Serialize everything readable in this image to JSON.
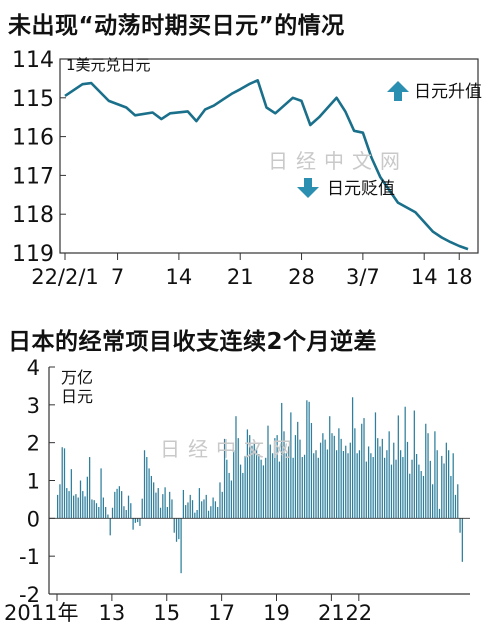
{
  "colors": {
    "line": "#1a6f8a",
    "bar": "#2f7f9c",
    "axis": "#333333",
    "arrow": "#2a8fb0",
    "bg": "#ffffff"
  },
  "titles": {
    "chart1": "未出现“动荡时期买日元”的情况",
    "chart2": "日本的经常项目收支连续2个月逆差"
  },
  "watermark": "日经中文网",
  "chart_data": [
    {
      "type": "line",
      "title": "未出现“动荡时期买日元”的情况",
      "unit": "1美元兑日元",
      "y_inverted": true,
      "ylim": [
        114,
        119
      ],
      "y_ticks": [
        114,
        115,
        116,
        117,
        118,
        119
      ],
      "x_tick_labels": [
        "22/2/1",
        "7",
        "14",
        "21",
        "28",
        "3/7",
        "14",
        "18"
      ],
      "x_tick_days": [
        0,
        6,
        13,
        20,
        27,
        34,
        41,
        45
      ],
      "annotations": {
        "up": "日元升值",
        "down": "日元贬值"
      },
      "series": [
        {
          "x_days": [
            0,
            2,
            3,
            5,
            7,
            8,
            10,
            11,
            12,
            14,
            15,
            16,
            17,
            18,
            19,
            20,
            21,
            22,
            23,
            24,
            26,
            27,
            28,
            29,
            31,
            32,
            33,
            34,
            35,
            36,
            38,
            40,
            41,
            42,
            43,
            44,
            45,
            46
          ],
          "values": [
            114.95,
            114.65,
            114.62,
            115.08,
            115.25,
            115.45,
            115.38,
            115.55,
            115.4,
            115.35,
            115.6,
            115.3,
            115.2,
            115.05,
            114.9,
            114.78,
            114.65,
            114.55,
            115.25,
            115.4,
            115.0,
            115.08,
            115.7,
            115.5,
            115.0,
            115.35,
            115.85,
            115.9,
            116.55,
            117.05,
            117.7,
            117.95,
            118.2,
            118.45,
            118.6,
            118.72,
            118.82,
            118.9
          ]
        }
      ]
    },
    {
      "type": "bar",
      "title": "日本的经常项目收支连续2个月逆差",
      "unit": [
        "万亿",
        "日元"
      ],
      "ylim": [
        -2,
        4
      ],
      "y_ticks": [
        4,
        3,
        2,
        1,
        0,
        -1,
        -2
      ],
      "x_tick_labels": [
        "2011年",
        "13",
        "15",
        "17",
        "19",
        "21",
        "22"
      ],
      "x_tick_index": [
        0,
        24,
        48,
        72,
        96,
        120,
        132
      ],
      "series": [
        {
          "values": [
            0.62,
            0.9,
            1.88,
            1.85,
            0.8,
            0.72,
            1.3,
            0.6,
            0.64,
            0.55,
            1.0,
            0.72,
            0.58,
            1.1,
            1.62,
            0.5,
            0.48,
            0.4,
            0.3,
            1.32,
            0.55,
            0.3,
            0.1,
            -0.45,
            0.28,
            0.7,
            0.78,
            0.85,
            0.72,
            0.32,
            0.22,
            0.6,
            0.4,
            -0.3,
            -0.12,
            -0.1,
            -0.2,
            0.52,
            1.8,
            1.62,
            1.32,
            1.12,
            0.95,
            0.68,
            0.8,
            0.28,
            0.64,
            0.82,
            0.3,
            0.7,
            0.5,
            -0.38,
            -0.62,
            -0.55,
            -1.45,
            0.75,
            0.35,
            0.42,
            0.62,
            0.48,
            0.15,
            0.22,
            0.8,
            0.45,
            0.5,
            0.62,
            0.2,
            0.32,
            0.55,
            0.45,
            0.3,
            0.95,
            0.7,
            2.1,
            1.55,
            1.2,
            1.0,
            1.8,
            2.7,
            2.12,
            1.42,
            1.2,
            1.65,
            2.35,
            2.2,
            1.92,
            2.0,
            1.82,
            1.7,
            1.55,
            1.4,
            1.6,
            2.45,
            1.95,
            1.72,
            2.12,
            2.2,
            1.5,
            3.05,
            2.3,
            1.72,
            1.9,
            2.8,
            1.6,
            2.2,
            2.55,
            2.08,
            1.62,
            1.68,
            3.12,
            3.08,
            2.52,
            1.72,
            1.8,
            1.6,
            2.0,
            2.25,
            2.08,
            1.82,
            2.7,
            2.25,
            2.18,
            1.8,
            2.38,
            2.1,
            1.78,
            1.92,
            1.72,
            2.0,
            3.2,
            2.38,
            1.72,
            1.8,
            2.5,
            2.65,
            1.5,
            1.9,
            1.72,
            1.62,
            2.8,
            2.12,
            1.9,
            2.1,
            1.6,
            1.8,
            2.3,
            1.42,
            2.0,
            1.55,
            2.72,
            1.8,
            1.62,
            2.95,
            2.02,
            1.18,
            1.55,
            2.85,
            1.7,
            1.42,
            1.25,
            1.12,
            2.5,
            2.25,
            1.52,
            0.9,
            2.3,
            1.8,
            0.25,
            1.65,
            1.45,
            2.0,
            1.8,
            1.12,
            1.72,
            0.62,
            0.9,
            -0.38,
            -1.15
          ]
        }
      ]
    }
  ]
}
